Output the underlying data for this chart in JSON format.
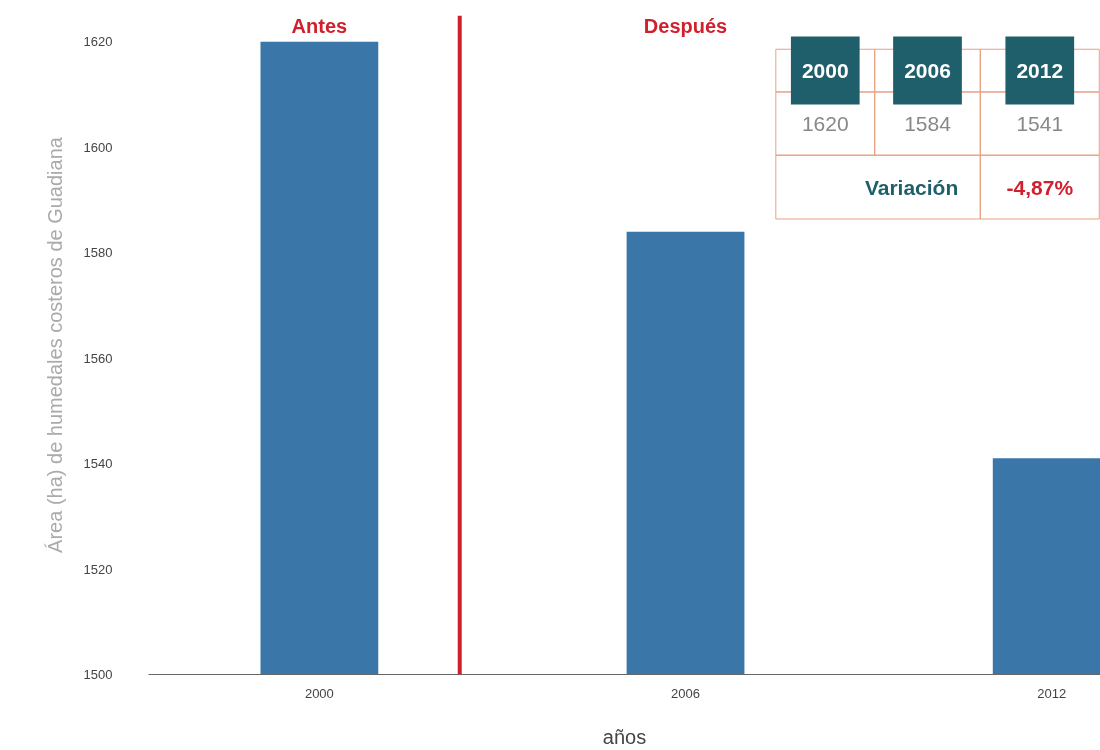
{
  "chart_data": {
    "type": "bar",
    "x": [
      2000,
      2006,
      2012
    ],
    "values": [
      1620,
      1584,
      1541
    ],
    "color": "#3a76a8",
    "xlim": [
      1997.2,
      2012.8
    ],
    "xticks": [
      2000,
      2006,
      2012
    ],
    "ylim": [
      1500,
      1625
    ],
    "yticks": [
      1500,
      1520,
      1540,
      1560,
      1580,
      1600,
      1620
    ],
    "xlabel": "años",
    "ylabel": "Área (ha) de humedales costeros de Guadiana",
    "ref_lines": [
      {
        "axis": "x",
        "value": 2002.3,
        "color": "#d0202e"
      }
    ],
    "annotations": [
      "Antes",
      "Después",
      "2000",
      "2006",
      "2012",
      "1620",
      "1584",
      "1541",
      "Variación",
      "-4,87%"
    ],
    "grid": false
  }
}
